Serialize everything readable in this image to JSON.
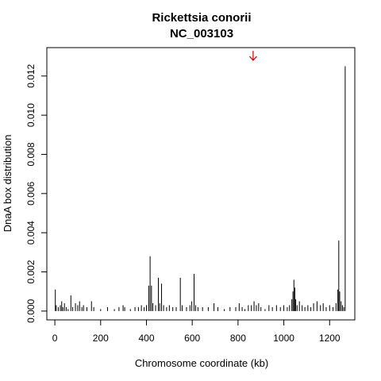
{
  "chart_data": {
    "type": "bar",
    "title": "Rickettsia conorii",
    "subtitle": "NC_003103",
    "xlabel": "Chromosome coordinate (kb)",
    "ylabel": "DnaA box distribution",
    "xlim": [
      -35,
      1310
    ],
    "ylim": [
      -0.00045,
      0.01345
    ],
    "xticks": [
      0,
      200,
      400,
      600,
      800,
      1000,
      1200
    ],
    "yticks": [
      0.0,
      0.002,
      0.004,
      0.006,
      0.008,
      0.01,
      0.012
    ],
    "ytick_labels": [
      "0.000",
      "0.002",
      "0.004",
      "0.006",
      "0.008",
      "0.010",
      "0.012"
    ],
    "bar_color": "#000000",
    "marker": {
      "x": 866,
      "y": 0.0128,
      "color": "#cc0000"
    },
    "points": [
      {
        "x": 2,
        "y": 0.0011
      },
      {
        "x": 6,
        "y": 0.0003
      },
      {
        "x": 15,
        "y": 0.0002
      },
      {
        "x": 24,
        "y": 0.0003
      },
      {
        "x": 30,
        "y": 0.0005
      },
      {
        "x": 35,
        "y": 0.0002
      },
      {
        "x": 42,
        "y": 0.0004
      },
      {
        "x": 50,
        "y": 0.0002
      },
      {
        "x": 58,
        "y": 0.0001
      },
      {
        "x": 70,
        "y": 0.0008
      },
      {
        "x": 78,
        "y": 0.0002
      },
      {
        "x": 90,
        "y": 0.0004
      },
      {
        "x": 100,
        "y": 0.0003
      },
      {
        "x": 108,
        "y": 0.0005
      },
      {
        "x": 118,
        "y": 0.0002
      },
      {
        "x": 125,
        "y": 0.0003
      },
      {
        "x": 140,
        "y": 0.0002
      },
      {
        "x": 160,
        "y": 0.0005
      },
      {
        "x": 170,
        "y": 0.0002
      },
      {
        "x": 200,
        "y": 0.0001
      },
      {
        "x": 230,
        "y": 0.0002
      },
      {
        "x": 260,
        "y": 0.0001
      },
      {
        "x": 280,
        "y": 0.0002
      },
      {
        "x": 298,
        "y": 0.0003
      },
      {
        "x": 305,
        "y": 0.0002
      },
      {
        "x": 330,
        "y": 0.0001
      },
      {
        "x": 350,
        "y": 0.0002
      },
      {
        "x": 365,
        "y": 0.0002
      },
      {
        "x": 378,
        "y": 0.0003
      },
      {
        "x": 390,
        "y": 0.0002
      },
      {
        "x": 400,
        "y": 0.0003
      },
      {
        "x": 410,
        "y": 0.0013
      },
      {
        "x": 416,
        "y": 0.0028
      },
      {
        "x": 422,
        "y": 0.0013
      },
      {
        "x": 428,
        "y": 0.0004
      },
      {
        "x": 440,
        "y": 0.0003
      },
      {
        "x": 452,
        "y": 0.0017
      },
      {
        "x": 458,
        "y": 0.0004
      },
      {
        "x": 466,
        "y": 0.0014
      },
      {
        "x": 475,
        "y": 0.0003
      },
      {
        "x": 488,
        "y": 0.0002
      },
      {
        "x": 500,
        "y": 0.0003
      },
      {
        "x": 515,
        "y": 0.0002
      },
      {
        "x": 530,
        "y": 0.0002
      },
      {
        "x": 548,
        "y": 0.0017
      },
      {
        "x": 556,
        "y": 0.0003
      },
      {
        "x": 575,
        "y": 0.0002
      },
      {
        "x": 590,
        "y": 0.0003
      },
      {
        "x": 598,
        "y": 0.0005
      },
      {
        "x": 608,
        "y": 0.0019
      },
      {
        "x": 615,
        "y": 0.0003
      },
      {
        "x": 625,
        "y": 0.0002
      },
      {
        "x": 645,
        "y": 0.0002
      },
      {
        "x": 670,
        "y": 0.0002
      },
      {
        "x": 695,
        "y": 0.0004
      },
      {
        "x": 712,
        "y": 0.0002
      },
      {
        "x": 740,
        "y": 0.0001
      },
      {
        "x": 765,
        "y": 0.0002
      },
      {
        "x": 790,
        "y": 0.0002
      },
      {
        "x": 805,
        "y": 0.0004
      },
      {
        "x": 818,
        "y": 0.0002
      },
      {
        "x": 830,
        "y": 0.0001
      },
      {
        "x": 845,
        "y": 0.0003
      },
      {
        "x": 858,
        "y": 0.0003
      },
      {
        "x": 870,
        "y": 0.0005
      },
      {
        "x": 880,
        "y": 0.0003
      },
      {
        "x": 890,
        "y": 0.0004
      },
      {
        "x": 900,
        "y": 0.0002
      },
      {
        "x": 918,
        "y": 0.0001
      },
      {
        "x": 935,
        "y": 0.0003
      },
      {
        "x": 950,
        "y": 0.0002
      },
      {
        "x": 968,
        "y": 0.0003
      },
      {
        "x": 985,
        "y": 0.0002
      },
      {
        "x": 1000,
        "y": 0.0003
      },
      {
        "x": 1015,
        "y": 0.0002
      },
      {
        "x": 1025,
        "y": 0.0003
      },
      {
        "x": 1035,
        "y": 0.0006
      },
      {
        "x": 1040,
        "y": 0.001
      },
      {
        "x": 1044,
        "y": 0.0016
      },
      {
        "x": 1048,
        "y": 0.0012
      },
      {
        "x": 1052,
        "y": 0.0006
      },
      {
        "x": 1058,
        "y": 0.0003
      },
      {
        "x": 1068,
        "y": 0.0005
      },
      {
        "x": 1080,
        "y": 0.0003
      },
      {
        "x": 1092,
        "y": 0.0002
      },
      {
        "x": 1105,
        "y": 0.0003
      },
      {
        "x": 1118,
        "y": 0.0002
      },
      {
        "x": 1130,
        "y": 0.0004
      },
      {
        "x": 1145,
        "y": 0.0005
      },
      {
        "x": 1160,
        "y": 0.0003
      },
      {
        "x": 1172,
        "y": 0.0004
      },
      {
        "x": 1185,
        "y": 0.0002
      },
      {
        "x": 1200,
        "y": 0.0003
      },
      {
        "x": 1215,
        "y": 0.0002
      },
      {
        "x": 1228,
        "y": 0.0004
      },
      {
        "x": 1236,
        "y": 0.0011
      },
      {
        "x": 1240,
        "y": 0.0036
      },
      {
        "x": 1244,
        "y": 0.001
      },
      {
        "x": 1250,
        "y": 0.0005
      },
      {
        "x": 1256,
        "y": 0.0003
      },
      {
        "x": 1262,
        "y": 0.0002
      },
      {
        "x": 1268,
        "y": 0.0125
      }
    ]
  }
}
